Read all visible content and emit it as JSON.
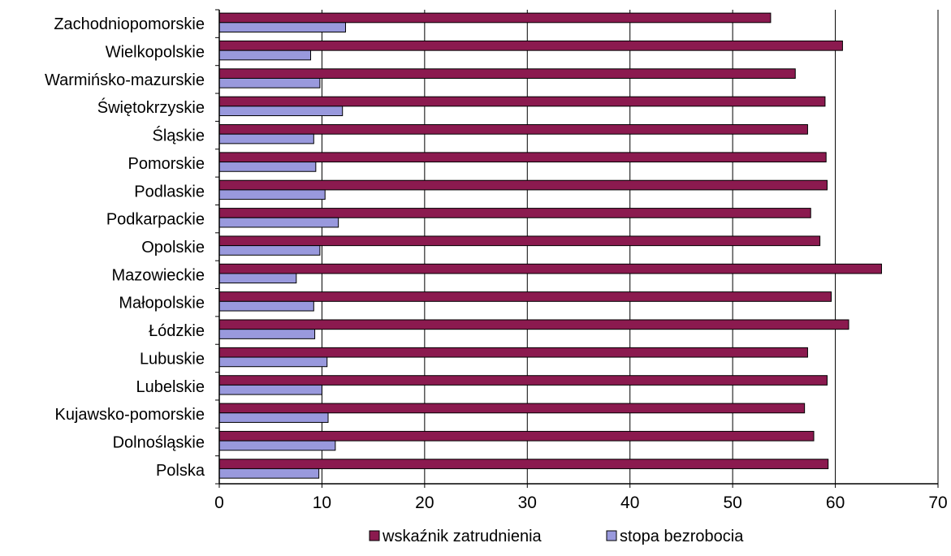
{
  "chart_data": {
    "type": "bar",
    "orientation": "horizontal",
    "categories": [
      "Zachodniopomorskie",
      "Wielkopolskie",
      "Warmińsko-mazurskie",
      "Świętokrzyskie",
      "Śląskie",
      "Pomorskie",
      "Podlaskie",
      "Podkarpackie",
      "Opolskie",
      "Mazowieckie",
      "Małopolskie",
      "Łódzkie",
      "Lubuskie",
      "Lubelskie",
      "Kujawsko-pomorskie",
      "Dolnośląskie",
      "Polska"
    ],
    "series": [
      {
        "name": "wskaźnik zatrudnienia",
        "color": "#8b1a4f",
        "values": [
          53.7,
          60.7,
          56.1,
          59.0,
          57.3,
          59.1,
          59.2,
          57.6,
          58.5,
          64.5,
          59.6,
          61.3,
          57.3,
          59.2,
          57.0,
          57.9,
          59.3
        ]
      },
      {
        "name": "stopa bezrobocia",
        "color": "#9999dd",
        "values": [
          12.3,
          8.9,
          9.8,
          12.0,
          9.2,
          9.4,
          10.3,
          11.6,
          9.8,
          7.5,
          9.2,
          9.3,
          10.5,
          10.0,
          10.6,
          11.3,
          9.7
        ]
      }
    ],
    "xlim": [
      0,
      70
    ],
    "xticks": [
      0,
      10,
      20,
      30,
      40,
      50,
      60,
      70
    ],
    "grid": true,
    "legend_position": "bottom"
  }
}
